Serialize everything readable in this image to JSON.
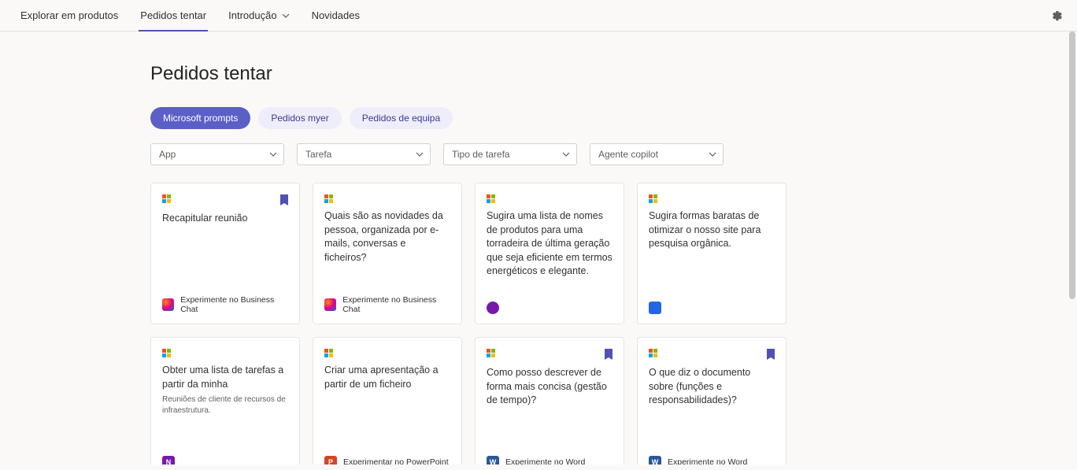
{
  "nav": {
    "items": [
      {
        "label": "Explorar em produtos",
        "active": false,
        "hasChevron": false
      },
      {
        "label": "Pedidos tentar",
        "active": true,
        "hasChevron": false
      },
      {
        "label": "Introdução",
        "active": false,
        "hasChevron": true
      },
      {
        "label": "Novidades",
        "active": false,
        "hasChevron": false
      }
    ]
  },
  "page": {
    "title": "Pedidos tentar"
  },
  "pills": [
    {
      "label": "Microsoft prompts",
      "active": true
    },
    {
      "label": "Pedidos myer",
      "active": false
    },
    {
      "label": "Pedidos de equipa",
      "active": false
    }
  ],
  "filters": [
    {
      "label": "App"
    },
    {
      "label": "Tarefa"
    },
    {
      "label": "Tipo de tarefa"
    },
    {
      "label": "Agente copilot"
    }
  ],
  "cards": [
    {
      "text": "Recapitular reunião",
      "subtext": "",
      "footerIcon": "chat",
      "footerLabel": "Experimente no Business Chat",
      "bookmarked": true
    },
    {
      "text": "Quais são as novidades da pessoa, organizada por e-mails, conversas e ficheiros?",
      "subtext": "",
      "footerIcon": "chat",
      "footerLabel": "Experimente no Business Chat",
      "bookmarked": false
    },
    {
      "text": "Sugira uma lista de nomes de produtos para uma torradeira de última geração que seja eficiente em termos energéticos e elegante.",
      "subtext": "",
      "footerIcon": "loop",
      "footerLabel": "",
      "bookmarked": false
    },
    {
      "text": "Sugira formas baratas de otimizar o nosso site para pesquisa orgânica.",
      "subtext": "",
      "footerIcon": "clip",
      "footerLabel": "",
      "bookmarked": false
    },
    {
      "text": "Obter uma lista de tarefas a partir da minha",
      "subtext": "Reuniões de cliente de recursos de infraestrutura.",
      "footerIcon": "onenote",
      "footerLabel": "",
      "bookmarked": false
    },
    {
      "text": "Criar uma apresentação a partir de um ficheiro",
      "subtext": "",
      "footerIcon": "ppt",
      "footerLabel": "Experimentar no PowerPoint",
      "bookmarked": false
    },
    {
      "text": "Como posso descrever de forma mais concisa (gestão de tempo)?",
      "subtext": "",
      "footerIcon": "word",
      "footerLabel": "Experimente no Word",
      "bookmarked": true
    },
    {
      "text": "O que diz o documento sobre (funções e responsabilidades)?",
      "subtext": "",
      "footerIcon": "word",
      "footerLabel": "Experimente no Word",
      "bookmarked": true
    }
  ],
  "iconGlyphs": {
    "onenote": "N",
    "ppt": "P",
    "word": "W"
  }
}
